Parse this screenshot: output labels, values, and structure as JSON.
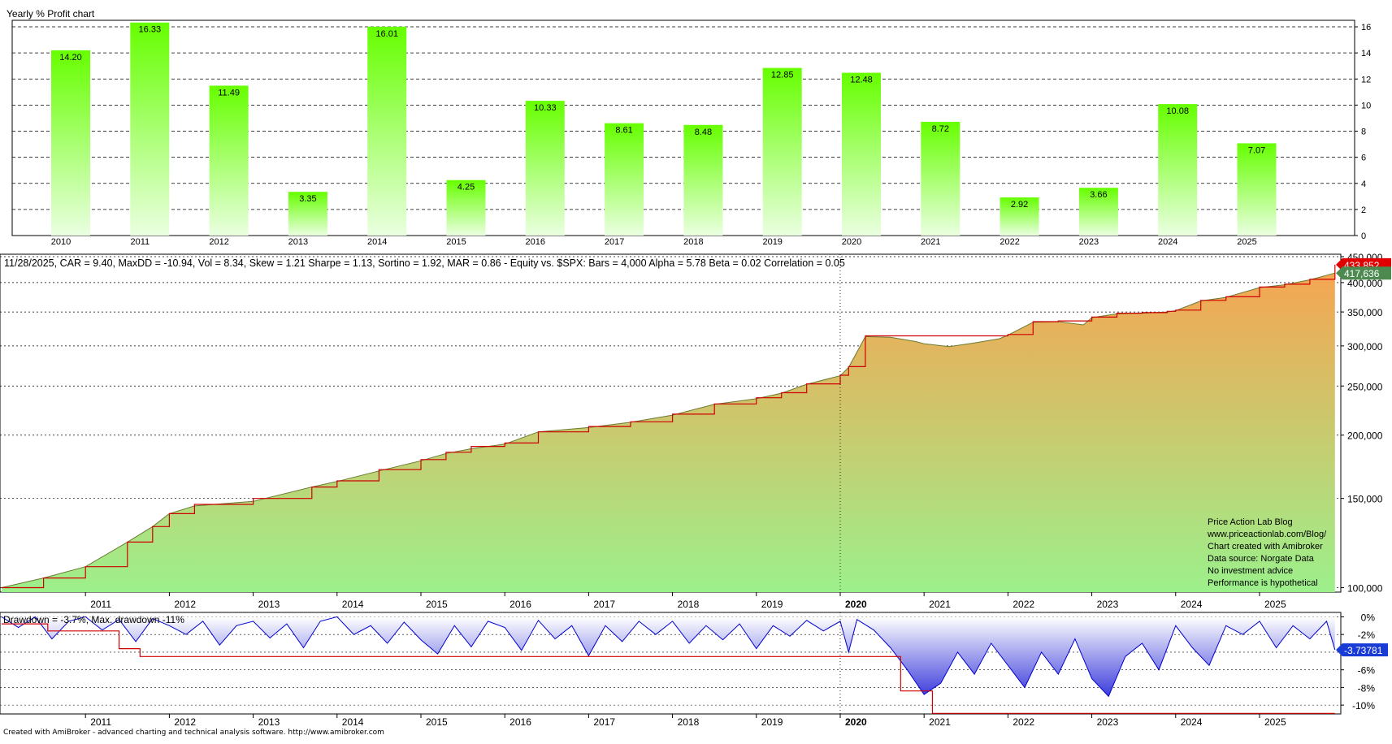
{
  "yearly_panel": {
    "title": "Yearly % Profit chart"
  },
  "equity_panel": {
    "stats_line": "11/28/2025, CAR = 9.40, MaxDD = -10.94, Vol = 8.34, Skew = 1.21 Sharpe = 1.13, Sortino = 1.92, MAR = 0.86 - Equity vs. $SPX:  Bars = 4,000 Alpha = 5.78 Beta = 0.02 Correlation = 0.05",
    "notes": [
      "Price Action Lab Blog",
      "www.priceactionlab.com/Blog/",
      "Chart created with Amibroker",
      "Data source: Norgate Data",
      "No investment advice",
      "Performance is hypothetical"
    ],
    "last_high_label": "433,852",
    "last_value_label": "417,636"
  },
  "drawdown_panel": {
    "title": "Drawdown = -3.7%, Max. drawdown -11%",
    "last_value_label": "-3.73781"
  },
  "footer": "Created with AmiBroker - advanced charting and technical analysis software. http://www.amibroker.com",
  "colors": {
    "bar_top": "#66ff00",
    "bar_bottom": "#eaffe0",
    "equity_top": "#f5a552",
    "equity_bottom": "#9cf08c",
    "high_line": "#d00000",
    "drawdown_line": "#0000cc",
    "drawdown_fill_top": "#ffffff",
    "drawdown_fill_bottom": "#3c3cdc",
    "last_high_badge": "#e00000",
    "last_value_badge": "#4c8a50",
    "dd_badge": "#1a3cd6"
  },
  "chart_data": [
    {
      "type": "bar",
      "title": "Yearly % Profit chart",
      "categories": [
        "2010",
        "2011",
        "2012",
        "2013",
        "2014",
        "2015",
        "2016",
        "2017",
        "2018",
        "2019",
        "2020",
        "2021",
        "2022",
        "2023",
        "2024",
        "2025"
      ],
      "values": [
        14.2,
        16.33,
        11.49,
        3.35,
        16.01,
        4.25,
        10.33,
        8.61,
        8.48,
        12.85,
        12.48,
        8.72,
        2.92,
        3.66,
        10.08,
        7.07
      ],
      "value_labels": [
        "14.20",
        "16.33",
        "11.49",
        "3.35",
        "16.01",
        "4.25",
        "10.33",
        "8.61",
        "8.48",
        "12.85",
        "12.48",
        "8.72",
        "2.92",
        "3.66",
        "10.08",
        "7.07"
      ],
      "y_ticks": [
        "0",
        "2",
        "4",
        "6",
        "8",
        "10",
        "12",
        "14",
        "16"
      ],
      "ylim": [
        0,
        16.5
      ],
      "grid": "horizontal dashed"
    },
    {
      "type": "area",
      "series": [
        {
          "name": "Equity",
          "x": [
            2010.0,
            2010.5,
            2011.0,
            2011.5,
            2011.8,
            2012.0,
            2012.3,
            2013.0,
            2013.7,
            2014.0,
            2014.5,
            2015.0,
            2015.3,
            2015.6,
            2016.0,
            2016.4,
            2017.0,
            2017.5,
            2018.0,
            2018.5,
            2019.0,
            2019.3,
            2019.6,
            2020.0,
            2020.1,
            2020.3,
            2020.6,
            2020.9,
            2021.0,
            2021.3,
            2021.6,
            2021.9,
            2022.0,
            2022.3,
            2022.6,
            2022.9,
            2023.0,
            2023.3,
            2023.6,
            2023.9,
            2024.0,
            2024.3,
            2024.6,
            2025.0,
            2025.3,
            2025.6,
            2025.9
          ],
          "values": [
            100000,
            104500,
            110000,
            123000,
            132000,
            140000,
            145000,
            148000,
            158000,
            162000,
            170000,
            178000,
            184000,
            188000,
            192000,
            203000,
            207000,
            212000,
            219000,
            230000,
            236000,
            242000,
            252000,
            262000,
            272000,
            313000,
            312000,
            306000,
            303000,
            299000,
            304000,
            310000,
            315000,
            334000,
            335000,
            330000,
            341000,
            347000,
            348000,
            350000,
            352000,
            368000,
            374000,
            391000,
            396000,
            405000,
            417636
          ]
        },
        {
          "name": "High",
          "x": [
            2010.0,
            2010.5,
            2011.0,
            2011.5,
            2011.8,
            2012.0,
            2012.3,
            2013.0,
            2013.7,
            2014.0,
            2014.5,
            2015.0,
            2015.3,
            2015.6,
            2016.0,
            2016.4,
            2017.0,
            2017.5,
            2018.0,
            2018.5,
            2019.0,
            2019.3,
            2019.6,
            2020.0,
            2020.1,
            2020.3,
            2020.6,
            2020.9,
            2021.0,
            2021.3,
            2021.6,
            2021.9,
            2022.0,
            2022.3,
            2022.6,
            2022.9,
            2023.0,
            2023.3,
            2023.6,
            2023.9,
            2024.0,
            2024.3,
            2024.6,
            2025.0,
            2025.3,
            2025.6,
            2025.9
          ],
          "values": [
            100000,
            104500,
            110000,
            123000,
            132000,
            140000,
            146000,
            150000,
            158000,
            162500,
            171000,
            179000,
            185000,
            190000,
            193000,
            203000,
            208000,
            212500,
            220000,
            230500,
            237000,
            242500,
            252500,
            262500,
            273000,
            314000,
            314000,
            314000,
            314000,
            314000,
            314000,
            314000,
            316000,
            335000,
            336000,
            336000,
            342000,
            348000,
            349000,
            351000,
            353000,
            369000,
            375000,
            392000,
            397000,
            406000,
            433852
          ]
        }
      ],
      "x_ticks": [
        "2011",
        "2012",
        "2013",
        "2014",
        "2015",
        "2016",
        "2017",
        "2018",
        "2019",
        "2020",
        "2021",
        "2022",
        "2023",
        "2024",
        "2025"
      ],
      "y_ticks": [
        "100,000",
        "150,000",
        "200,000",
        "250,000",
        "300,000",
        "350,000",
        "400,000",
        "450,000"
      ],
      "y_scale": "log",
      "ylim": [
        98000,
        455000
      ]
    },
    {
      "type": "area",
      "series": [
        {
          "name": "Drawdown",
          "x": [
            2010.0,
            2010.2,
            2010.4,
            2010.6,
            2010.8,
            2011.0,
            2011.2,
            2011.4,
            2011.6,
            2011.8,
            2012.0,
            2012.2,
            2012.4,
            2012.6,
            2012.8,
            2013.0,
            2013.2,
            2013.4,
            2013.6,
            2013.8,
            2014.0,
            2014.2,
            2014.4,
            2014.6,
            2014.8,
            2015.0,
            2015.2,
            2015.4,
            2015.6,
            2015.8,
            2016.0,
            2016.2,
            2016.4,
            2016.6,
            2016.8,
            2017.0,
            2017.2,
            2017.4,
            2017.6,
            2017.8,
            2018.0,
            2018.2,
            2018.4,
            2018.6,
            2018.8,
            2019.0,
            2019.2,
            2019.4,
            2019.6,
            2019.8,
            2020.0,
            2020.1,
            2020.2,
            2020.4,
            2020.6,
            2020.8,
            2021.0,
            2021.2,
            2021.4,
            2021.6,
            2021.8,
            2022.0,
            2022.2,
            2022.4,
            2022.6,
            2022.8,
            2023.0,
            2023.2,
            2023.4,
            2023.6,
            2023.8,
            2024.0,
            2024.2,
            2024.4,
            2024.6,
            2024.8,
            2025.0,
            2025.2,
            2025.4,
            2025.6,
            2025.8,
            2025.9
          ],
          "values": [
            0,
            -1.2,
            0,
            -2.5,
            -0.5,
            0,
            -1.5,
            -0.3,
            -2.8,
            -0.2,
            -1.0,
            -2.0,
            -0.5,
            -3.2,
            -1.0,
            -0.5,
            -2.4,
            -0.8,
            -3.5,
            -0.5,
            0,
            -2.0,
            -1.0,
            -3.0,
            -0.6,
            -2.6,
            -4.2,
            -1.0,
            -3.4,
            -0.5,
            -1.2,
            -3.8,
            -0.4,
            -2.5,
            -1.0,
            -4.4,
            -1.0,
            -2.8,
            -0.5,
            -2.0,
            -0.5,
            -3.0,
            -1.0,
            -2.6,
            -0.8,
            -3.6,
            -1.0,
            -2.2,
            -0.4,
            -1.6,
            -0.5,
            -4.0,
            -0.3,
            -1.5,
            -3.5,
            -6.0,
            -8.8,
            -7.5,
            -4.0,
            -6.5,
            -3.0,
            -5.5,
            -8.0,
            -4.0,
            -6.5,
            -2.5,
            -7.0,
            -9.0,
            -4.5,
            -3.0,
            -6.0,
            -1.0,
            -3.5,
            -5.5,
            -1.0,
            -2.0,
            -0.5,
            -3.5,
            -1.0,
            -2.5,
            -0.5,
            -3.74
          ]
        },
        {
          "name": "Max drawdown",
          "x": [
            2010.0,
            2010.3,
            2010.55,
            2011.4,
            2011.65,
            2020.3,
            2020.72,
            2021.0,
            2021.1,
            2025.9
          ],
          "values": [
            -0.8,
            -0.8,
            -1.6,
            -3.6,
            -4.5,
            -4.5,
            -8.4,
            -8.4,
            -10.94,
            -10.94
          ]
        }
      ],
      "x_ticks": [
        "2011",
        "2012",
        "2013",
        "2014",
        "2015",
        "2016",
        "2017",
        "2018",
        "2019",
        "2020",
        "2021",
        "2022",
        "2023",
        "2024",
        "2025"
      ],
      "y_ticks": [
        "0%",
        "-2%",
        "-4%",
        "-6%",
        "-8%",
        "-10%"
      ],
      "ylim": [
        -11,
        0.5
      ]
    }
  ]
}
